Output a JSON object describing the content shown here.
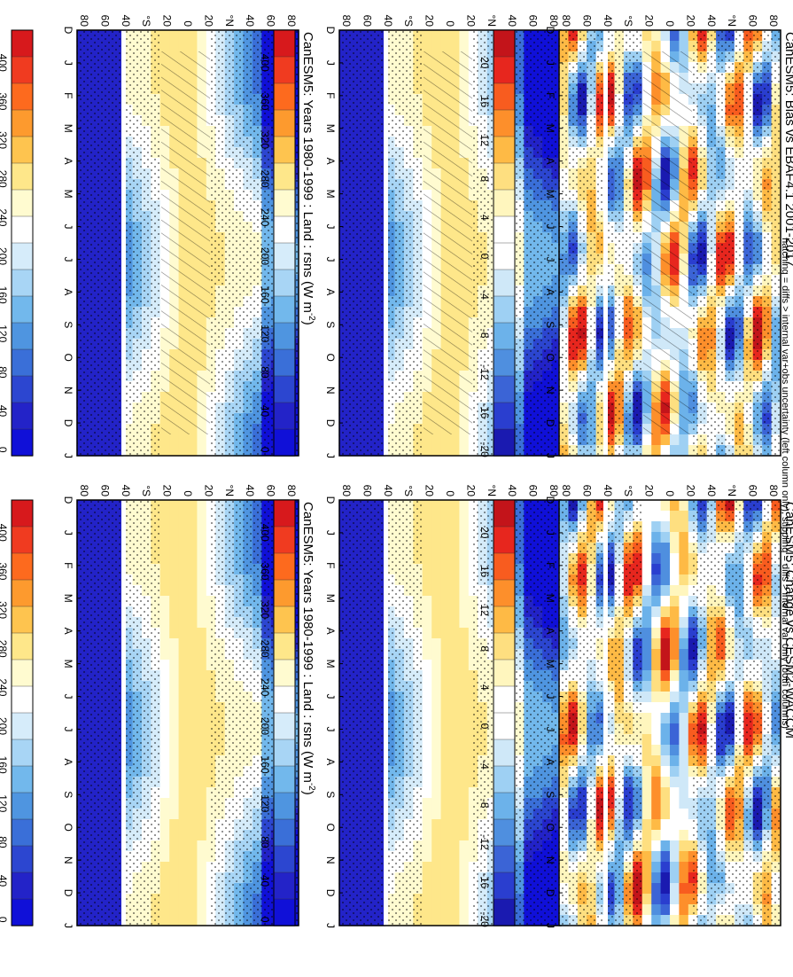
{
  "figure": {
    "footnote": "hatching = diffs > internal var+obs uncertainty (left column only); stippling = diffs > internal var only (both columns)"
  },
  "chart_data": [
    {
      "type": "heatmap",
      "title": "CanESM5: Years 1980-1999 : Land : rsns (W m",
      "title_sup": "-2",
      "title_close": ")",
      "x": [
        "D",
        "J",
        "F",
        "M",
        "A",
        "M",
        "J",
        "J",
        "A",
        "S",
        "O",
        "N",
        "D",
        "J"
      ],
      "y": [
        "80",
        "60",
        "40",
        "°N",
        "20",
        "0",
        "20",
        "°S",
        "40",
        "60",
        "80"
      ],
      "colorbar": [
        "400",
        "360",
        "320",
        "280",
        "240",
        "200",
        "160",
        "120",
        "80",
        "40",
        "0"
      ],
      "scale": "absolute"
    },
    {
      "type": "heatmap",
      "title": "EBAF4.1 2001-2017 Uncer=15 W/m2",
      "x": [
        "D",
        "J",
        "F",
        "M",
        "A",
        "M",
        "J",
        "J",
        "A",
        "S",
        "O",
        "N",
        "D",
        "J"
      ],
      "y": [
        "80",
        "60",
        "40",
        "°N",
        "20",
        "0",
        "20",
        "°S",
        "40",
        "60",
        "80"
      ],
      "colorbar": [
        "400",
        "360",
        "320",
        "280",
        "240",
        "200",
        "160",
        "120",
        "80",
        "40",
        "0"
      ],
      "scale": "absolute"
    },
    {
      "type": "heatmap",
      "title": "CanESM5: Bias vs EBAF4.1 2001-2017",
      "x": [
        "D",
        "J",
        "F",
        "M",
        "A",
        "M",
        "J",
        "J",
        "A",
        "S",
        "O",
        "N",
        "D",
        "J"
      ],
      "y": [
        "80",
        "60",
        "°N",
        "40",
        "20",
        "0",
        "20",
        "°S",
        "40",
        "60",
        "80"
      ],
      "colorbar": [
        "20",
        "16",
        "12",
        "8",
        "4",
        "0",
        "-4",
        "-8",
        "-12",
        "-16",
        "-20"
      ],
      "scale": "difference"
    },
    {
      "type": "heatmap",
      "title": "CanESM5: Years 1980-1999 : Land : rsns (W m",
      "title_sup": "-2",
      "title_close": ")",
      "x": [
        "D",
        "J",
        "F",
        "M",
        "A",
        "M",
        "J",
        "J",
        "A",
        "S",
        "O",
        "N",
        "D",
        "J"
      ],
      "y": [
        "80",
        "60",
        "40",
        "°N",
        "20",
        "0",
        "20",
        "°S",
        "40",
        "60",
        "80"
      ],
      "colorbar": [
        "400",
        "360",
        "320",
        "280",
        "240",
        "200",
        "160",
        "120",
        "80",
        "40",
        "0"
      ],
      "scale": "absolute"
    },
    {
      "type": "heatmap",
      "title": "CESM2-WACCM",
      "x": [
        "D",
        "J",
        "F",
        "M",
        "A",
        "M",
        "J",
        "J",
        "A",
        "S",
        "O",
        "N",
        "D",
        "J"
      ],
      "y": [
        "80",
        "60",
        "40",
        "°N",
        "20",
        "0",
        "20",
        "°S",
        "40",
        "60",
        "80"
      ],
      "colorbar": [
        "400",
        "360",
        "320",
        "280",
        "240",
        "200",
        "160",
        "120",
        "80",
        "40",
        "0"
      ],
      "scale": "absolute"
    },
    {
      "type": "heatmap",
      "title": "CanESM5: Change vs CESM2-WACCM",
      "x": [
        "D",
        "J",
        "F",
        "M",
        "A",
        "M",
        "J",
        "J",
        "A",
        "S",
        "O",
        "N",
        "D",
        "J"
      ],
      "y": [
        "80",
        "60",
        "°N",
        "40",
        "20",
        "0",
        "20",
        "°S",
        "40",
        "60",
        "80"
      ],
      "colorbar": [
        "20",
        "16",
        "12",
        "8",
        "4",
        "0",
        "-4",
        "-8",
        "-12",
        "-16",
        "-20"
      ],
      "scale": "difference"
    }
  ]
}
